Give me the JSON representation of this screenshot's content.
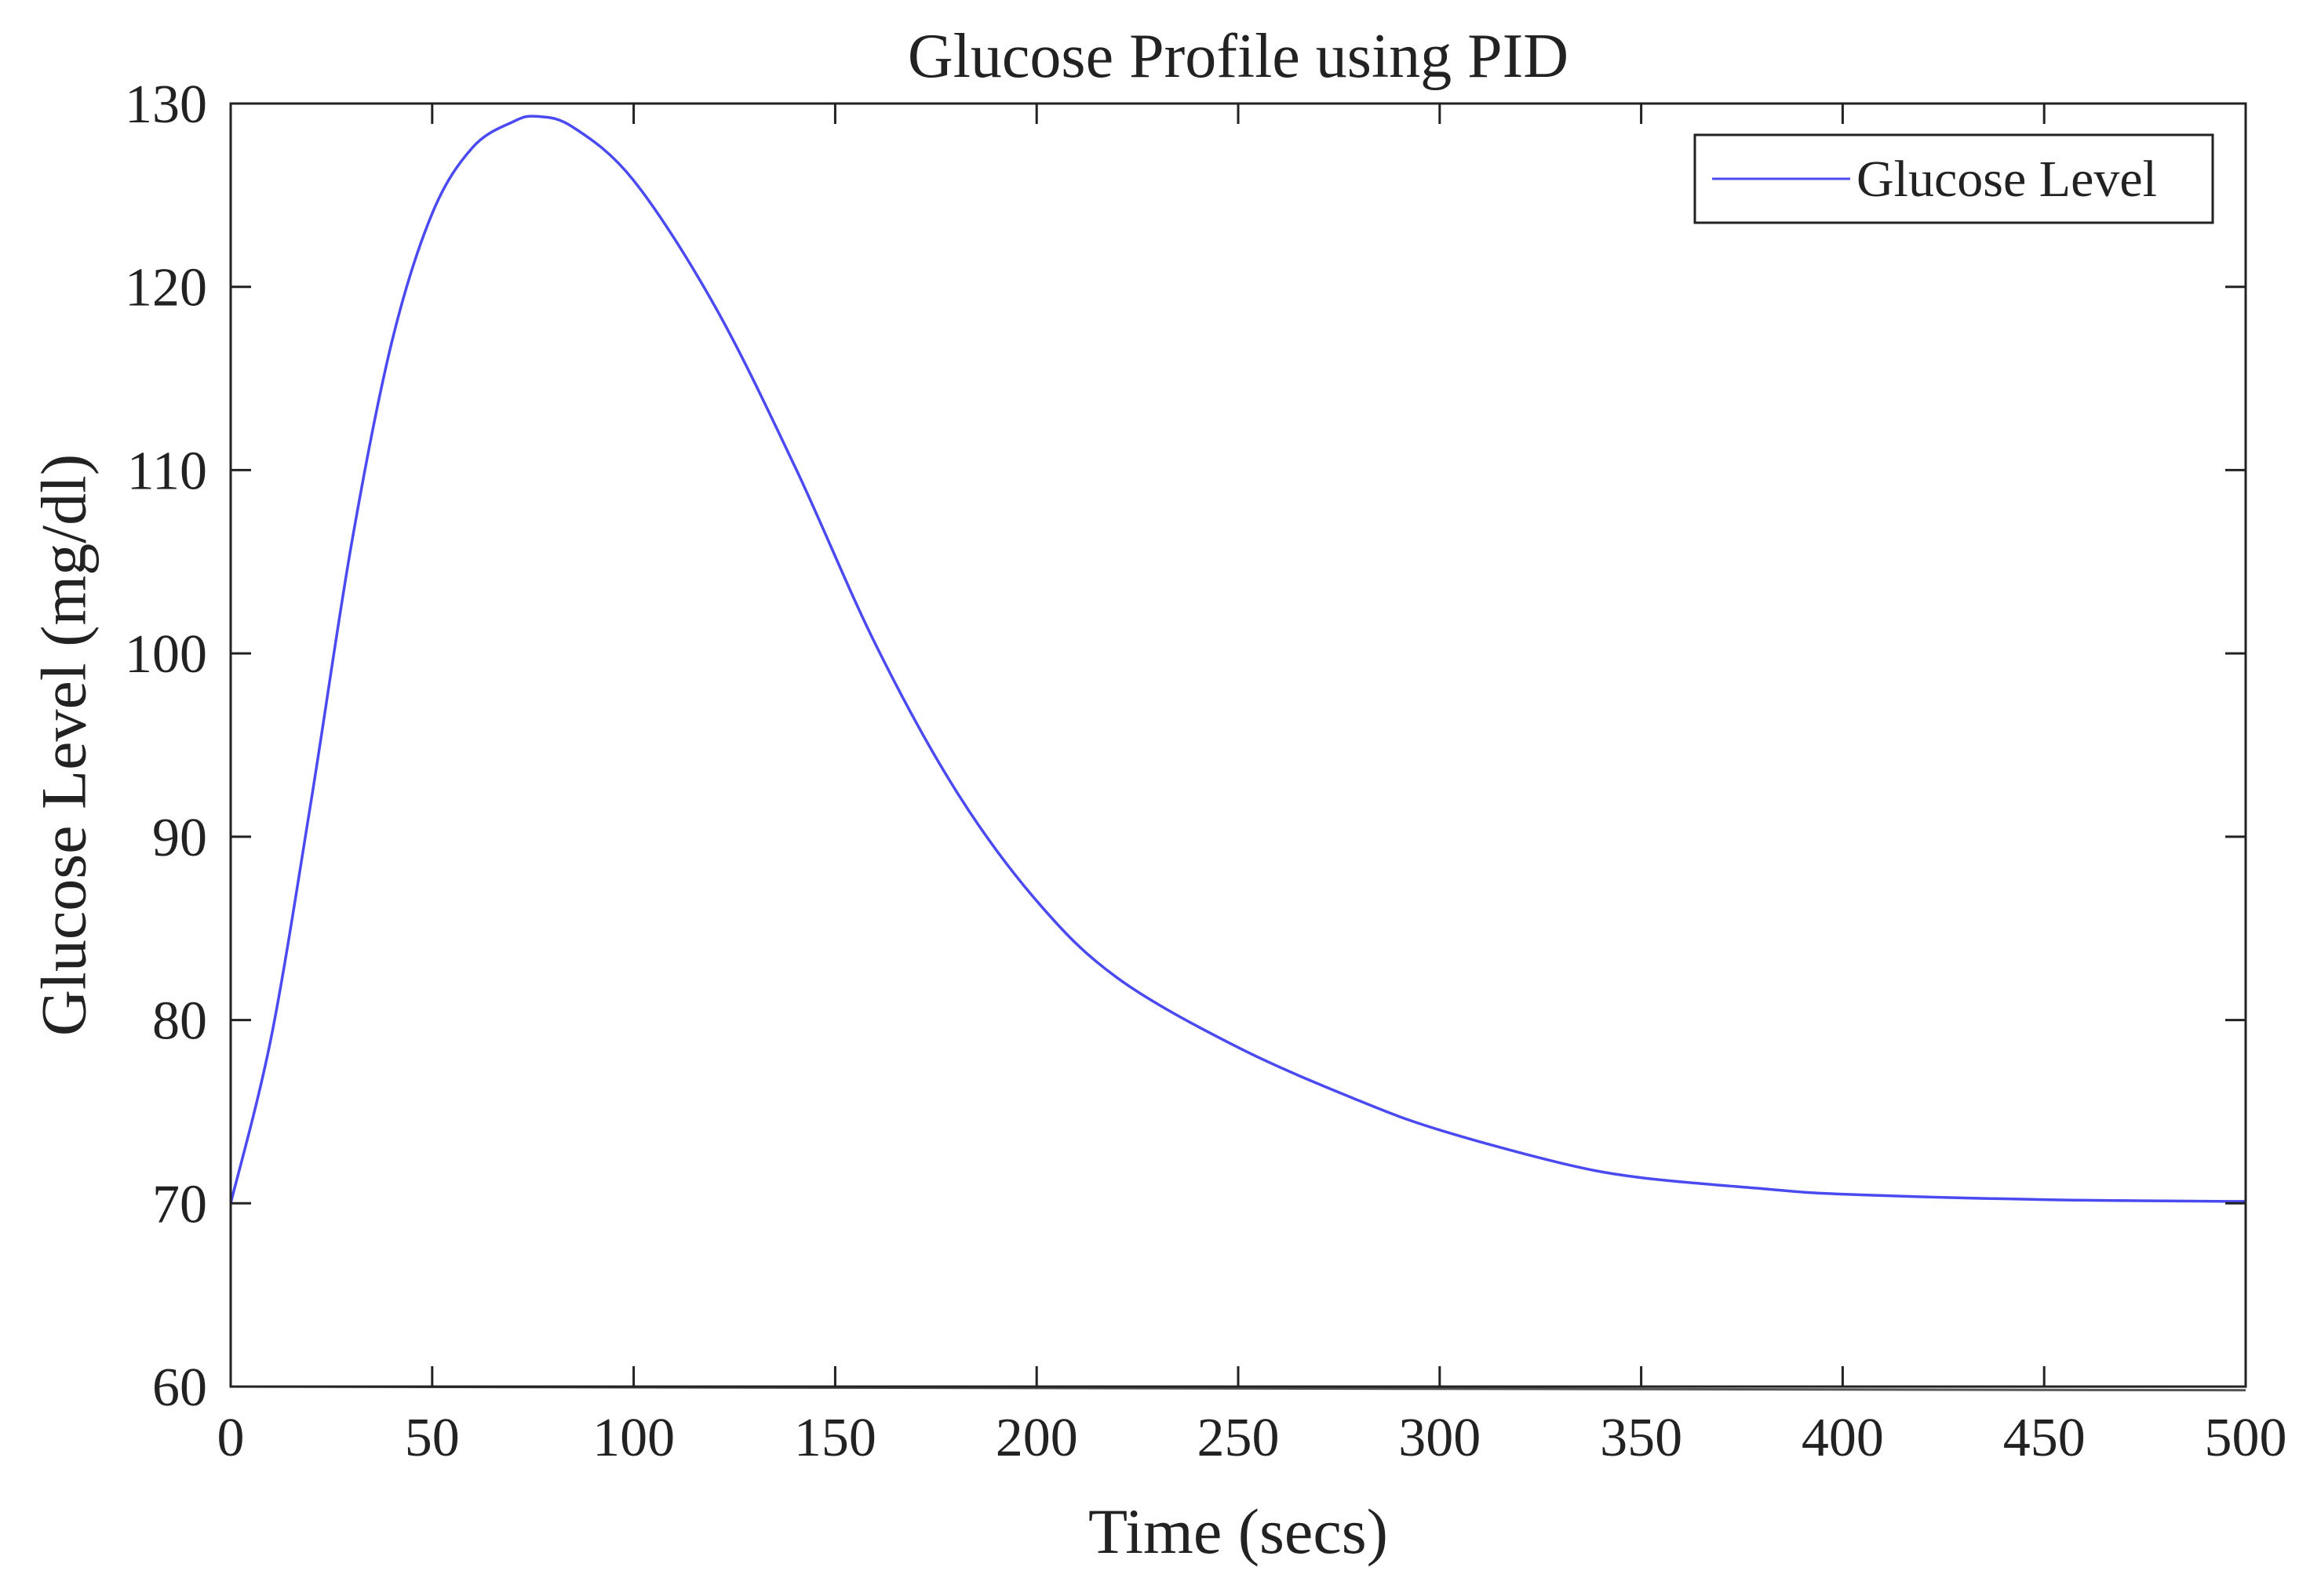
{
  "chart_data": {
    "type": "line",
    "title": "Glucose Profile using PID",
    "xlabel": "Time (secs)",
    "ylabel": "Glucose Level (mg/dl)",
    "xlim": [
      0,
      500
    ],
    "ylim": [
      60,
      130
    ],
    "xticks": [
      0,
      50,
      100,
      150,
      200,
      250,
      300,
      350,
      400,
      450,
      500
    ],
    "yticks": [
      60,
      70,
      80,
      90,
      100,
      110,
      120,
      130
    ],
    "grid": false,
    "legend_position": "top-right",
    "series": [
      {
        "name": "Glucose Level",
        "color": "#4a4af0",
        "x": [
          0,
          10,
          20,
          30,
          40,
          50,
          60,
          70,
          76,
          85,
          100,
          120,
          140,
          160,
          180,
          200,
          220,
          250,
          280,
          300,
          330,
          350,
          380,
          400,
          450,
          500
        ],
        "values": [
          70,
          79,
          92,
          106,
          117,
          124,
          127.6,
          129,
          129.3,
          128.7,
          125.8,
          119,
          110.2,
          100.5,
          92.5,
          86.5,
          82.3,
          78.5,
          75.6,
          74,
          72.2,
          71.4,
          70.8,
          70.5,
          70.2,
          70.1
        ]
      }
    ],
    "baseline": {
      "x": [
        0,
        500
      ],
      "values": [
        60,
        59.8
      ]
    }
  }
}
